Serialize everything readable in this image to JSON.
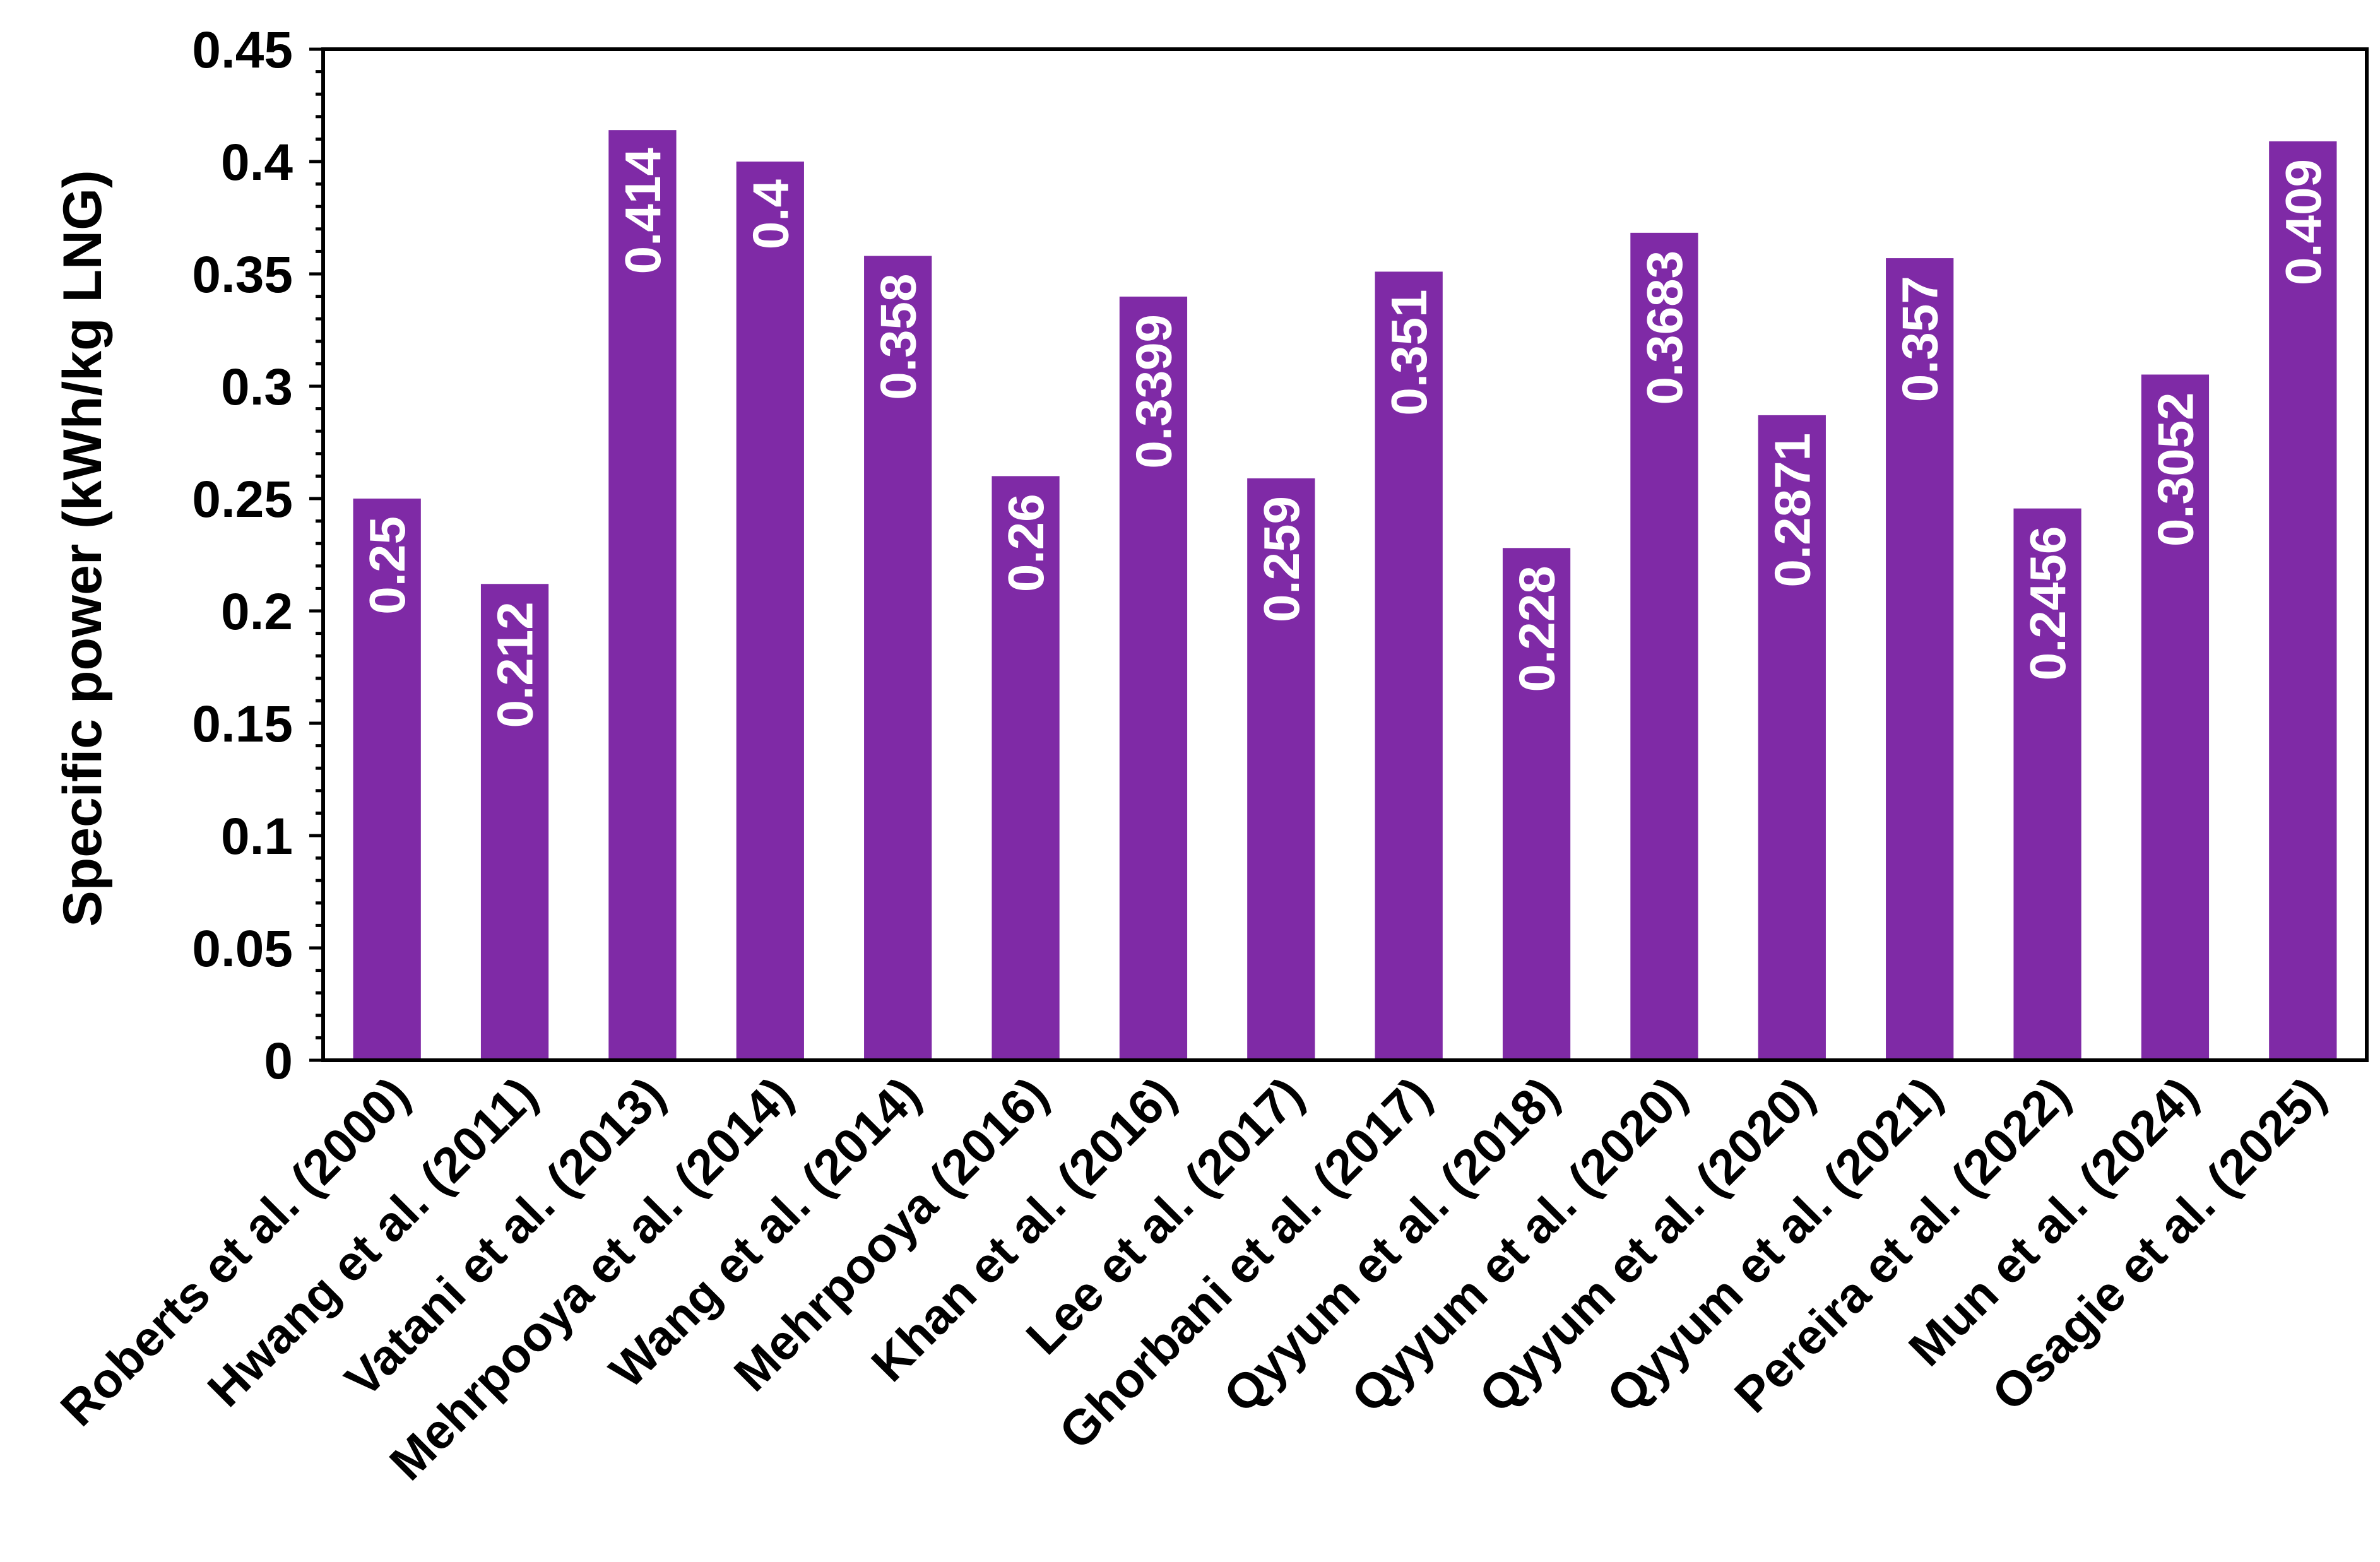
{
  "chart_data": {
    "type": "bar",
    "title": "",
    "xlabel": "",
    "ylabel": "Specific power (kWh/kg LNG)",
    "ylim": [
      0,
      0.45
    ],
    "yticks": [
      "0",
      "0.05",
      "0.1",
      "0.15",
      "0.2",
      "0.25",
      "0.3",
      "0.35",
      "0.4",
      "0.45"
    ],
    "minor_tick_step": 0.01,
    "grid": false,
    "legend": "none",
    "bar_color": "#7F2AA6",
    "label_color": "#FFFFFF",
    "categories": [
      "Roberts et al. (2000)",
      "Hwang et al. (2011)",
      "Vatani et al. (2013)",
      "Mehrpooya et al. (2014)",
      "Wang et al. (2014)",
      "Mehrpooya (2016)",
      "Khan et al. (2016)",
      "Lee et al. (2017)",
      "Ghorbani et al. (2017)",
      "Qyyum et al. (2018)",
      "Qyyum et al. (2020)",
      "Qyyum et al. (2020)",
      "Qyyum et al. (2021)",
      "Pereira et al. (2022)",
      "Mun et al. (2024)",
      "Osagie et al. (2025)"
    ],
    "values": [
      0.25,
      0.212,
      0.414,
      0.4,
      0.358,
      0.26,
      0.3399,
      0.259,
      0.351,
      0.228,
      0.3683,
      0.2871,
      0.357,
      0.2456,
      0.3052,
      0.409
    ],
    "data_labels": [
      "0.25",
      "0.212",
      "0.414",
      "0.4",
      "0.358",
      "0.26",
      "0.3399",
      "0.259",
      "0.351",
      "0.228",
      "0.3683",
      "0.2871",
      "0.357",
      "0.2456",
      "0.3052",
      "0.409"
    ]
  }
}
